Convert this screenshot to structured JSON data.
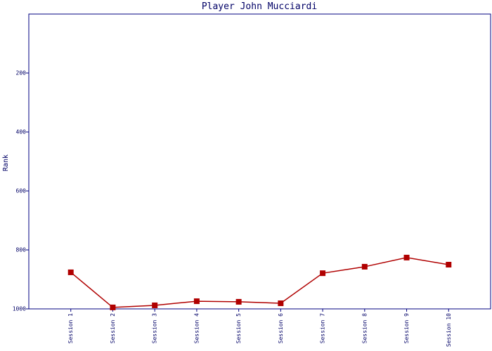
{
  "chart_data": {
    "type": "line",
    "title": "Player John Mucciardi",
    "y_label": "Rank",
    "categories": [
      "Session 1",
      "Session 2",
      "Session 3",
      "Session 4",
      "Session 5",
      "Session 6",
      "Session 7",
      "Session 8",
      "Session 9",
      "Session 10"
    ],
    "values": [
      876,
      995,
      988,
      974,
      976,
      981,
      879,
      857,
      826,
      850
    ],
    "color": "#b00000",
    "ylim": [
      1000,
      0
    ],
    "yticks": [
      200,
      400,
      600,
      800,
      1000
    ],
    "grid": false
  }
}
